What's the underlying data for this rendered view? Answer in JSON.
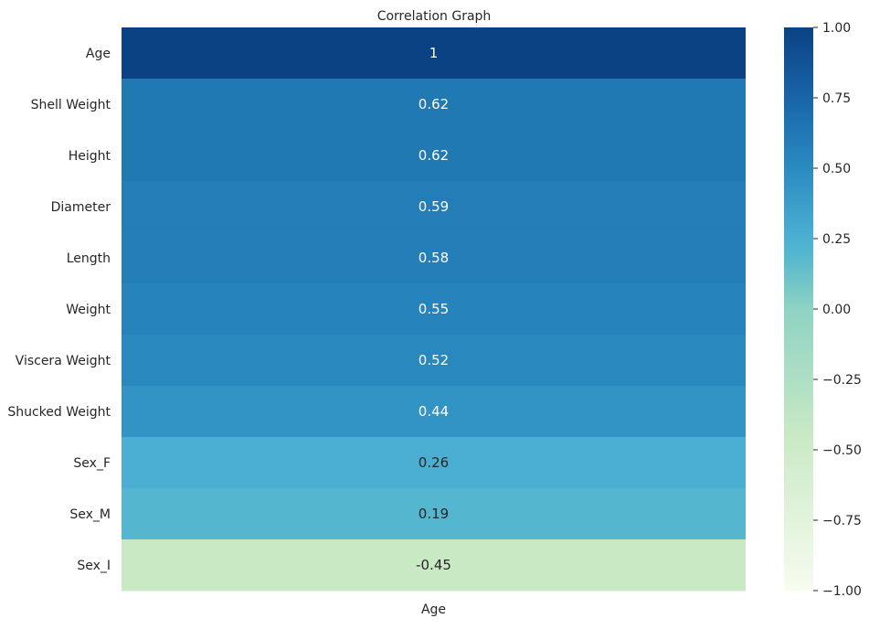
{
  "chart_data": {
    "type": "heatmap",
    "title": "Correlation Graph",
    "columns": [
      "Age"
    ],
    "rows": [
      "Age",
      "Shell Weight",
      "Height",
      "Diameter",
      "Length",
      "Weight",
      "Viscera Weight",
      "Shucked Weight",
      "Sex_F",
      "Sex_M",
      "Sex_I"
    ],
    "values": [
      1.0,
      0.62,
      0.62,
      0.59,
      0.58,
      0.55,
      0.52,
      0.44,
      0.26,
      0.19,
      -0.45
    ],
    "value_labels": [
      "1",
      "0.62",
      "0.62",
      "0.59",
      "0.58",
      "0.55",
      "0.52",
      "0.44",
      "0.26",
      "0.19",
      "-0.45"
    ],
    "colormap": "YlGnBu-like",
    "vmin": -1.0,
    "vmax": 1.0,
    "colorbar_ticks": [
      1.0,
      0.75,
      0.5,
      0.25,
      0.0,
      -0.25,
      -0.5,
      -0.75,
      -1.0
    ],
    "colorbar_tick_labels": [
      "1.00",
      "0.75",
      "0.50",
      "0.25",
      "0.00",
      "−0.25",
      "−0.50",
      "−0.75",
      "−1.00"
    ],
    "colors": {
      "-1.0": "#f7fcf0",
      "-0.45": "#c9e9c5",
      "0.0": "#8ed3c3",
      "0.19": "#55b7cf",
      "0.26": "#4aafd2",
      "0.5": "#2a8bc0",
      "0.75": "#1865a8",
      "1.0": "#0b4283"
    }
  }
}
